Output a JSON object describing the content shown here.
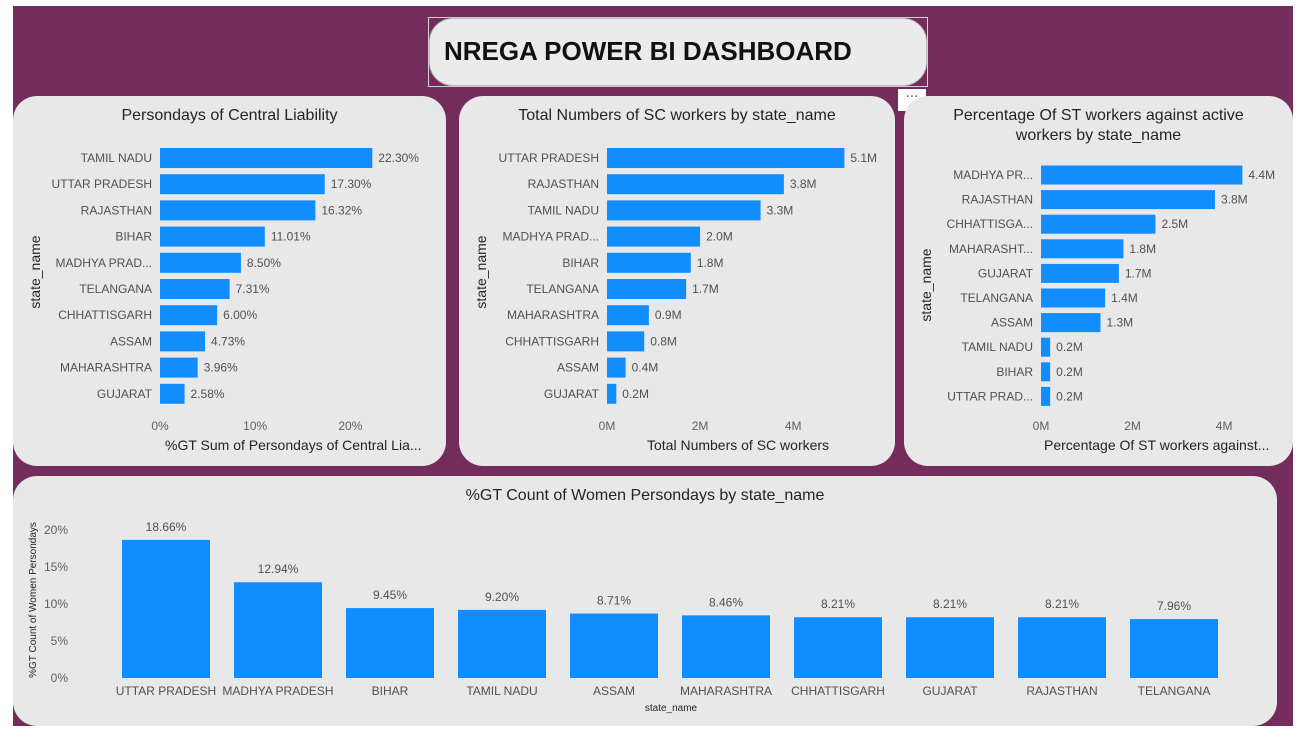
{
  "header": {
    "title": "NREGA POWER BI DASHBOARD",
    "more_label": "···"
  },
  "colors": {
    "bar": "#118dff",
    "canvas": "#742c5c",
    "card": "#e8e8e8"
  },
  "chart_data": [
    {
      "id": "central",
      "type": "bar",
      "orientation": "horizontal",
      "title": "Persondays of Central Liability",
      "ylabel": "state_name",
      "xlabel": "%GT Sum of Persondays of Central Lia...",
      "categories": [
        "TAMIL NADU",
        "UTTAR PRADESH",
        "RAJASTHAN",
        "BIHAR",
        "MADHYA PRAD...",
        "TELANGANA",
        "CHHATTISGARH",
        "ASSAM",
        "MAHARASHTRA",
        "GUJARAT"
      ],
      "values": [
        22.3,
        17.3,
        16.32,
        11.01,
        8.5,
        7.31,
        6.0,
        4.73,
        3.96,
        2.58
      ],
      "labels": [
        "22.30%",
        "17.30%",
        "16.32%",
        "11.01%",
        "8.50%",
        "7.31%",
        "6.00%",
        "4.73%",
        "3.96%",
        "2.58%"
      ],
      "ticks": [
        0,
        10,
        20
      ],
      "tick_labels": [
        "0%",
        "10%",
        "20%"
      ],
      "xlim": [
        0,
        25
      ]
    },
    {
      "id": "sc",
      "type": "bar",
      "orientation": "horizontal",
      "title": "Total Numbers of SC workers by state_name",
      "ylabel": "state_name",
      "xlabel": "Total Numbers of SC workers",
      "categories": [
        "UTTAR PRADESH",
        "RAJASTHAN",
        "TAMIL NADU",
        "MADHYA PRAD...",
        "BIHAR",
        "TELANGANA",
        "MAHARASHTRA",
        "CHHATTISGARH",
        "ASSAM",
        "GUJARAT"
      ],
      "values": [
        5.1,
        3.8,
        3.3,
        2.0,
        1.8,
        1.7,
        0.9,
        0.8,
        0.4,
        0.2
      ],
      "labels": [
        "5.1M",
        "3.8M",
        "3.3M",
        "2.0M",
        "1.8M",
        "1.7M",
        "0.9M",
        "0.8M",
        "0.4M",
        "0.2M"
      ],
      "ticks": [
        0,
        2,
        4
      ],
      "tick_labels": [
        "0M",
        "2M",
        "4M"
      ],
      "xlim": [
        0,
        5.5
      ]
    },
    {
      "id": "st",
      "type": "bar",
      "orientation": "horizontal",
      "title": "Percentage Of ST workers against active workers by state_name",
      "ylabel": "state_name",
      "xlabel": "Percentage Of ST workers against...",
      "categories": [
        "MADHYA PR...",
        "RAJASTHAN",
        "CHHATTISGA...",
        "MAHARASHT...",
        "GUJARAT",
        "TELANGANA",
        "ASSAM",
        "TAMIL NADU",
        "BIHAR",
        "UTTAR PRAD..."
      ],
      "values": [
        4.4,
        3.8,
        2.5,
        1.8,
        1.7,
        1.4,
        1.3,
        0.2,
        0.2,
        0.2
      ],
      "labels": [
        "4.4M",
        "3.8M",
        "2.5M",
        "1.8M",
        "1.7M",
        "1.4M",
        "1.3M",
        "0.2M",
        "0.2M",
        "0.2M"
      ],
      "ticks": [
        0,
        2,
        4
      ],
      "tick_labels": [
        "0M",
        "2M",
        "4M"
      ],
      "xlim": [
        0,
        4.5
      ]
    },
    {
      "id": "women",
      "type": "bar",
      "orientation": "vertical",
      "title": "%GT Count of Women Persondays by state_name",
      "ylabel": "%GT Count of Women Persondays",
      "xlabel": "state_name",
      "categories": [
        "UTTAR PRADESH",
        "MADHYA PRADESH",
        "BIHAR",
        "TAMIL NADU",
        "ASSAM",
        "MAHARASHTRA",
        "CHHATTISGARH",
        "GUJARAT",
        "RAJASTHAN",
        "TELANGANA"
      ],
      "values": [
        18.66,
        12.94,
        9.45,
        9.2,
        8.71,
        8.46,
        8.21,
        8.21,
        8.21,
        7.96
      ],
      "labels": [
        "18.66%",
        "12.94%",
        "9.45%",
        "9.20%",
        "8.71%",
        "8.46%",
        "8.21%",
        "8.21%",
        "8.21%",
        "7.96%"
      ],
      "ticks": [
        0,
        5,
        10,
        15,
        20
      ],
      "tick_labels": [
        "0%",
        "5%",
        "10%",
        "15%",
        "20%"
      ],
      "ylim": [
        0,
        20
      ]
    }
  ]
}
